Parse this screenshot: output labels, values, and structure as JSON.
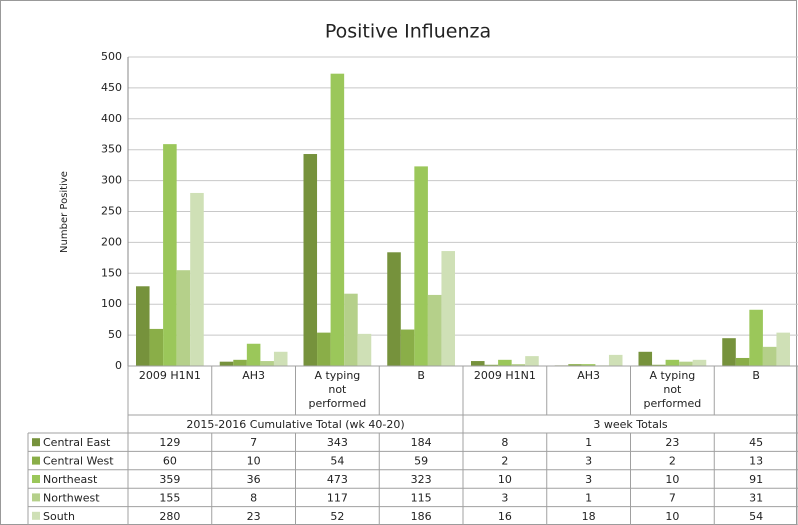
{
  "chart_data": {
    "type": "bar",
    "title": "Positive Influenza",
    "y_label": "Number Positive",
    "categories": [
      "2009 H1N1",
      "AH3",
      "A typing not performed",
      "B",
      "2009 H1N1",
      "AH3",
      "A typing not performed",
      "B"
    ],
    "category_groups": [
      "2015-2016 Cumulative Total (wk 40-20)",
      "3 week Totals"
    ],
    "series": [
      {
        "name": "Central East",
        "color": "#76923c",
        "values": [
          129,
          7,
          343,
          184,
          8,
          1,
          23,
          45
        ]
      },
      {
        "name": "Central West",
        "color": "#8aae48",
        "values": [
          60,
          10,
          54,
          59,
          2,
          3,
          2,
          13
        ]
      },
      {
        "name": "Northeast",
        "color": "#9bc75a",
        "values": [
          359,
          36,
          473,
          323,
          10,
          3,
          10,
          91
        ]
      },
      {
        "name": "Northwest",
        "color": "#b5d08a",
        "values": [
          155,
          8,
          117,
          115,
          3,
          1,
          7,
          31
        ]
      },
      {
        "name": "South",
        "color": "#cfe0b6",
        "values": [
          280,
          23,
          52,
          186,
          16,
          18,
          10,
          54
        ]
      }
    ],
    "ylim": [
      0,
      500
    ],
    "yticks": [
      0,
      50,
      100,
      150,
      200,
      250,
      300,
      350,
      400,
      450,
      500
    ],
    "grid": true
  }
}
